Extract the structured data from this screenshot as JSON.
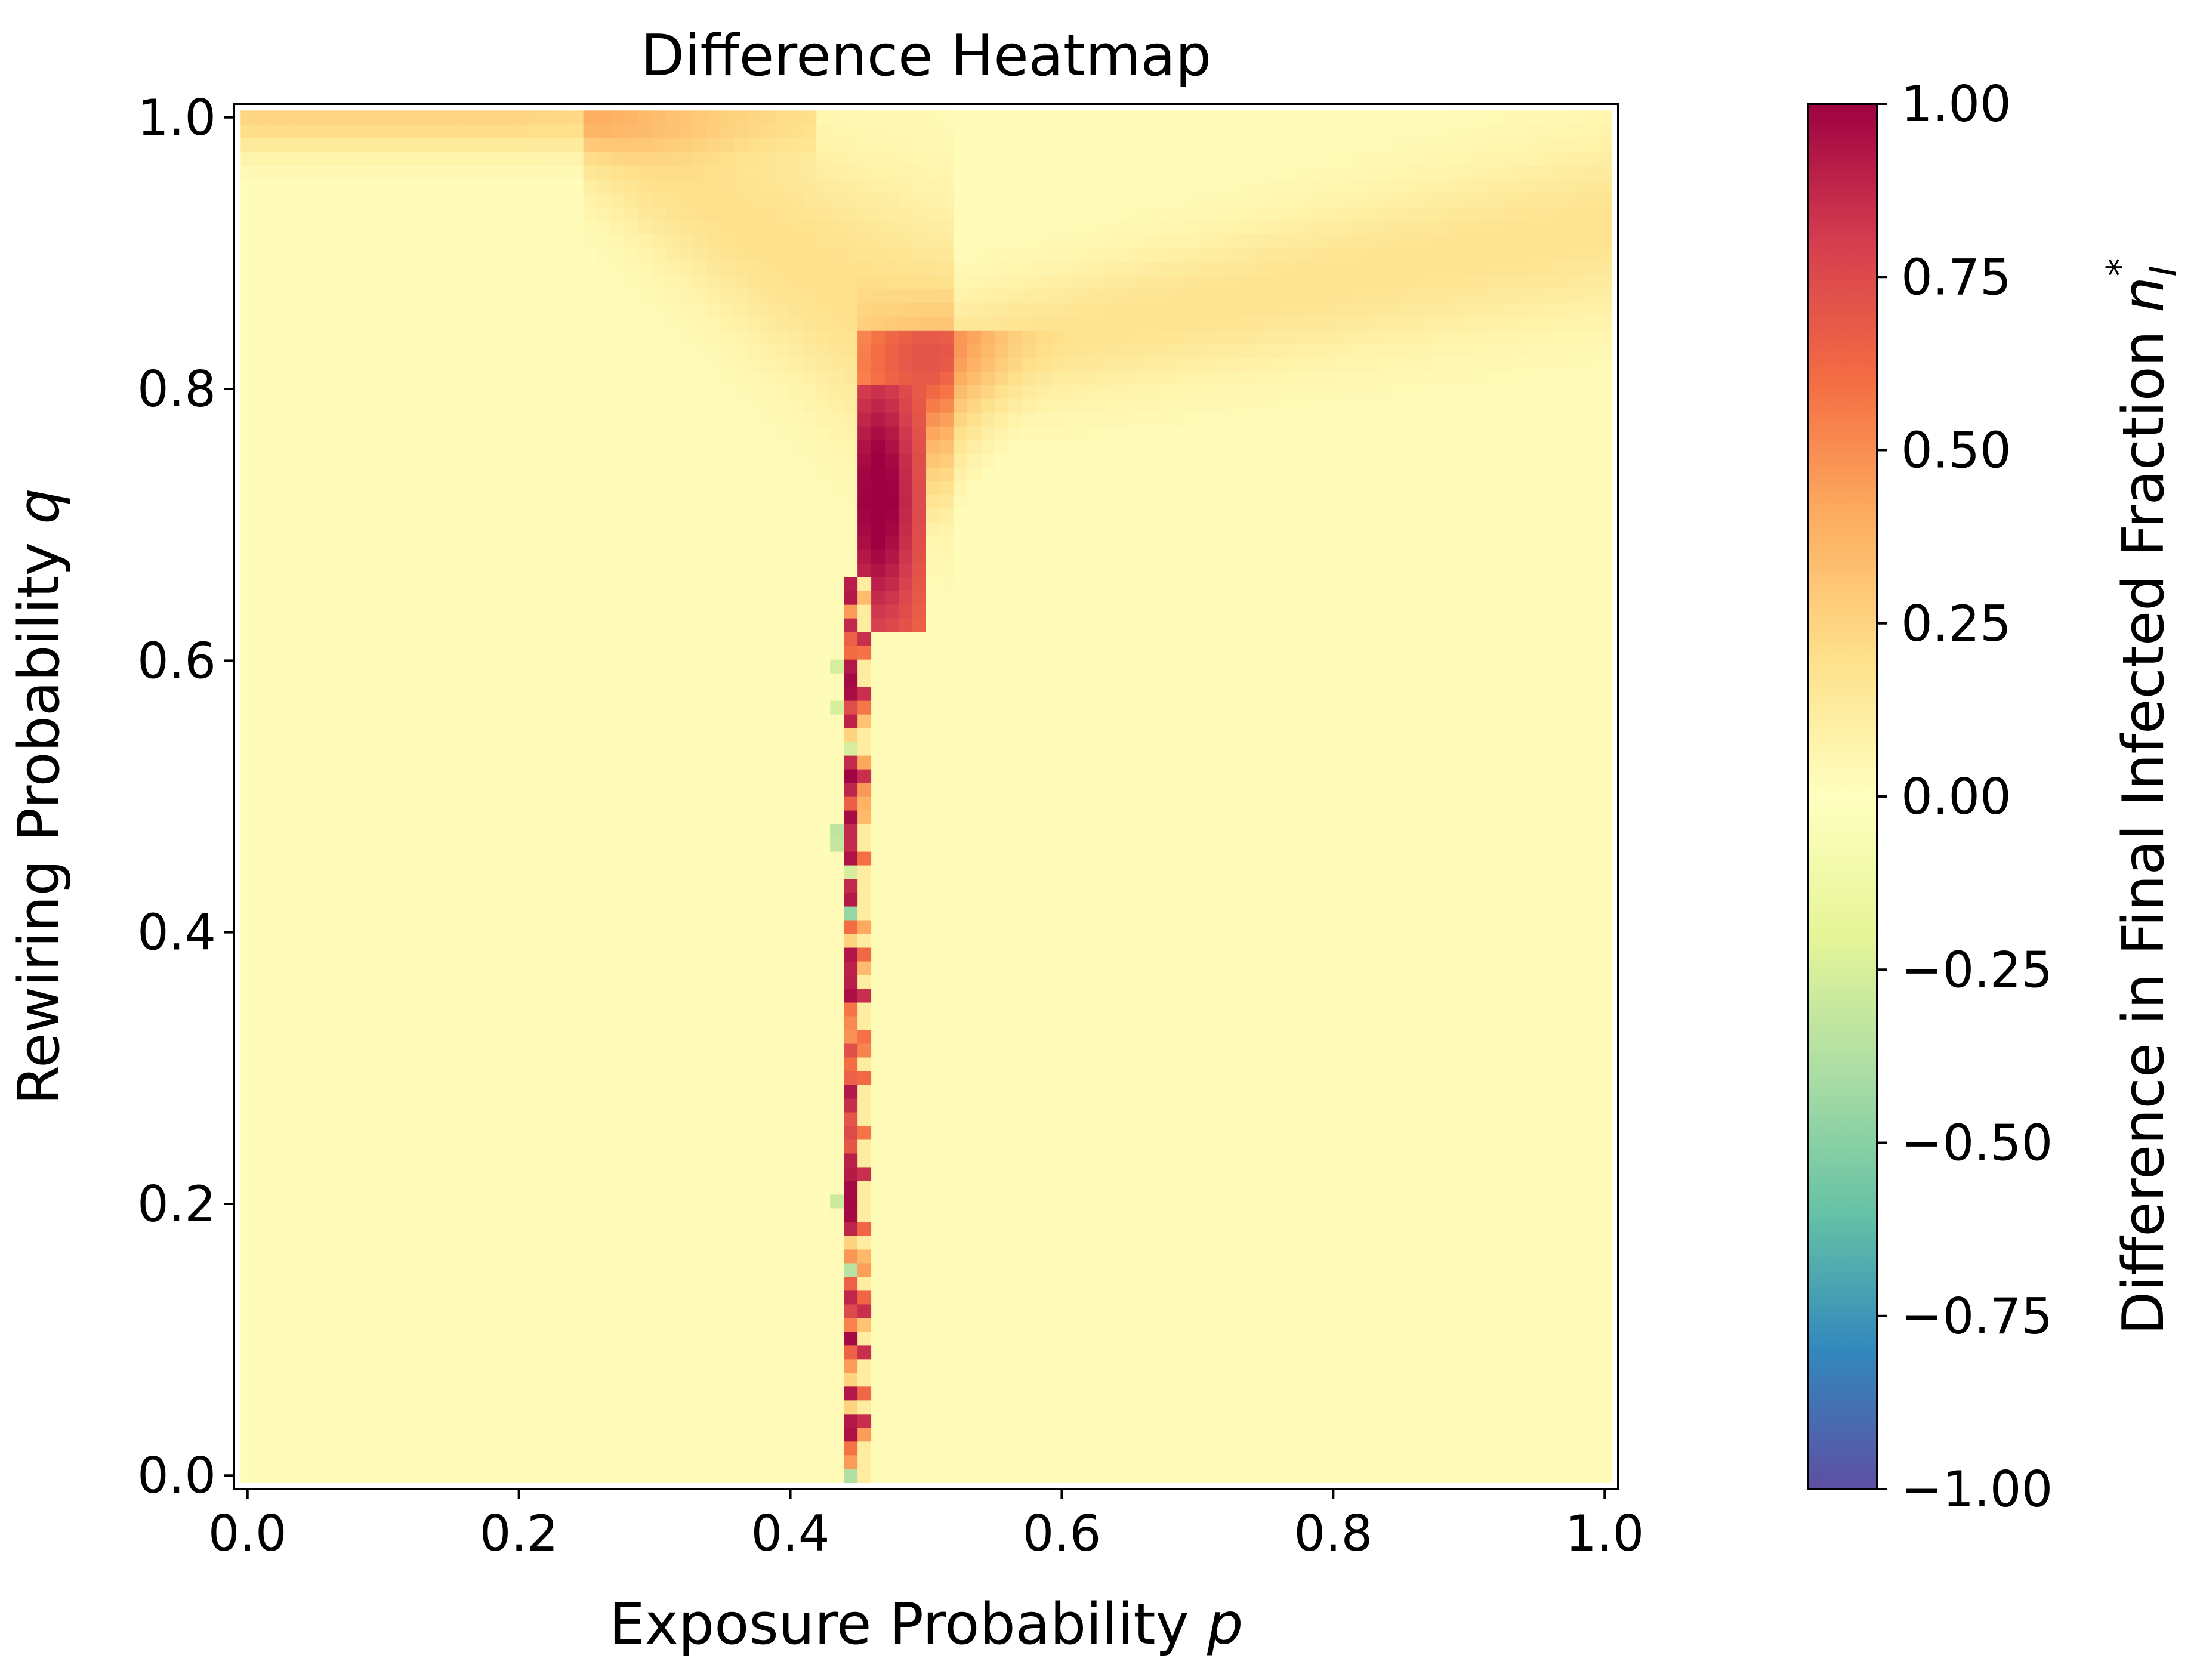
{
  "chart_data": {
    "type": "heatmap",
    "title": "Difference Heatmap",
    "xlabel": "Exposure Probability",
    "xlabel_symbol": "p",
    "ylabel": "Rewiring Probability",
    "ylabel_symbol": "q",
    "xlim": [
      -0.01,
      1.01
    ],
    "ylim": [
      -0.01,
      1.01
    ],
    "x_ticks": [
      0.0,
      0.2,
      0.4,
      0.6,
      0.8,
      1.0
    ],
    "x_tick_labels": [
      "0.0",
      "0.2",
      "0.4",
      "0.6",
      "0.8",
      "1.0"
    ],
    "y_ticks": [
      0.0,
      0.2,
      0.4,
      0.6,
      0.8,
      1.0
    ],
    "y_tick_labels": [
      "0.0",
      "0.2",
      "0.4",
      "0.6",
      "0.8",
      "1.0"
    ],
    "grid": false,
    "colormap": "Spectral_r",
    "colorbar": {
      "label": "Difference in Final Infected Fraction",
      "label_symbol": "n",
      "label_subscript": "I",
      "label_superscript": "*",
      "vmin": -1.0,
      "vmax": 1.0,
      "ticks": [
        1.0,
        0.75,
        0.5,
        0.25,
        0.0,
        -0.25,
        -0.5,
        -0.75,
        -1.0
      ],
      "tick_labels": [
        "1.00",
        "0.75",
        "0.50",
        "0.25",
        "0.00",
        "−0.25",
        "−0.50",
        "−0.75",
        "−1.00"
      ],
      "stops": [
        {
          "v": -1.0,
          "color": "#5e4fa2"
        },
        {
          "v": -0.8,
          "color": "#3288bd"
        },
        {
          "v": -0.6,
          "color": "#66c2a5"
        },
        {
          "v": -0.4,
          "color": "#abdda4"
        },
        {
          "v": -0.2,
          "color": "#e6f598"
        },
        {
          "v": 0.0,
          "color": "#ffffbf"
        },
        {
          "v": 0.2,
          "color": "#fee08b"
        },
        {
          "v": 0.4,
          "color": "#fdae61"
        },
        {
          "v": 0.6,
          "color": "#f46d43"
        },
        {
          "v": 0.8,
          "color": "#d53e4f"
        },
        {
          "v": 1.0,
          "color": "#9e0142"
        }
      ]
    },
    "grid_resolution": 100,
    "features": {
      "background_value": 0.02,
      "critical_p": 0.44,
      "critical_strip": "narrow vertical strip near p = 0.43–0.45 for q below ~0.65, scattered values between -0.5 and 1.0",
      "peak_region": "values ~1.0 for p ≈ 0.44–0.48, q ≈ 0.62–0.80",
      "ridge_top": "band of ~0.2 along q ≈ 1.0 for p ≤ 0.35",
      "ridge_right": "band of ~0.15 rising from (0.5, 0.82) to (1.0, 0.92)"
    }
  }
}
